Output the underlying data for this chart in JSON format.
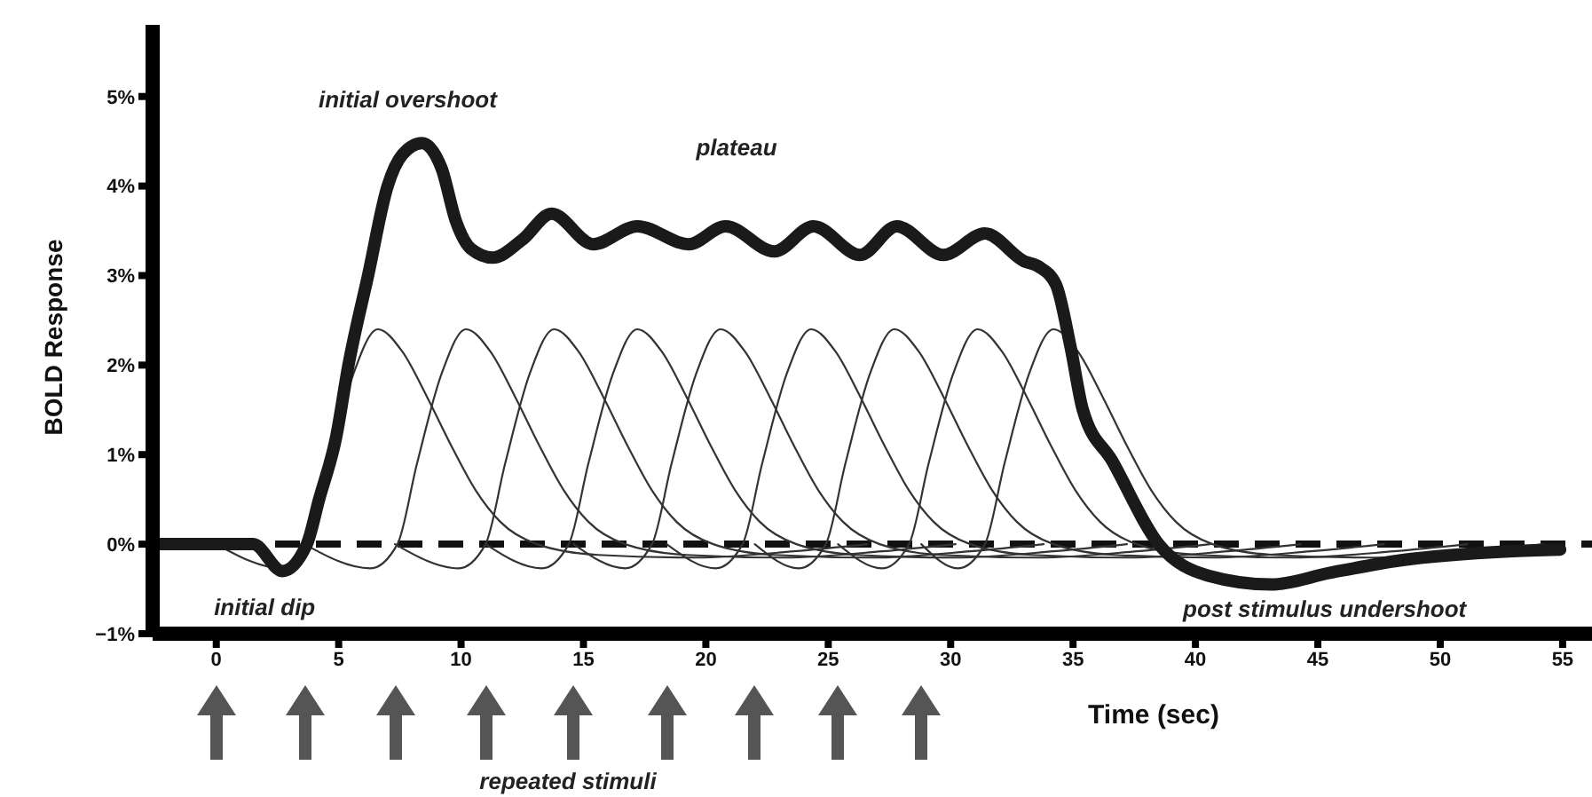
{
  "chart_data": {
    "type": "line",
    "xlabel": "Time (sec)",
    "ylabel": "BOLD Response",
    "xlim": [
      -2.6,
      56.2
    ],
    "xticks": [
      0,
      5,
      10,
      15,
      20,
      25,
      30,
      35,
      40,
      45,
      50,
      55
    ],
    "ylim": [
      -1,
      5.8
    ],
    "yticks": [
      {
        "value": -1,
        "label": "−1%"
      },
      {
        "value": 0,
        "label": "0%"
      },
      {
        "value": 1,
        "label": "1%"
      },
      {
        "value": 2,
        "label": "2%"
      },
      {
        "value": 3,
        "label": "3%"
      },
      {
        "value": 4,
        "label": "4%"
      },
      {
        "value": 5,
        "label": "5%"
      }
    ],
    "grid": false,
    "marker": "none",
    "line_style": "solid",
    "ref_lines": [
      {
        "axis": "y",
        "value": 0,
        "color": "#111111",
        "line_style": "dashed"
      }
    ],
    "annotations": [
      {
        "text": "initial overshoot",
        "x": 8.4,
        "y": 4.48
      },
      "plateau",
      {
        "text": "initial dip",
        "x": 2.7,
        "y": -0.3
      },
      {
        "text": "post stimulus undershoot",
        "x": 43.1,
        "y": -0.45
      },
      "repeated stimuli"
    ],
    "series": [
      {
        "color": "#1a1a1a",
        "x": [
          -2.6,
          1.5,
          2.7,
          3.7,
          4.2,
          4.9,
          5.4,
          6.2,
          7.0,
          7.6,
          8.4,
          9.2,
          9.8,
          10.4,
          11.3,
          12.5,
          13.7,
          15.4,
          17.2,
          19.3,
          20.8,
          22.8,
          24.4,
          26.3,
          27.8,
          29.7,
          31.4,
          33.0,
          33.6,
          34.3,
          34.9,
          35.4,
          36.6,
          38.5,
          40.5,
          43.1,
          45.5,
          48.4,
          52.8,
          54.9
        ],
        "values": [
          0,
          0,
          -0.3,
          0,
          0.5,
          1.2,
          2,
          3,
          4,
          4.35,
          4.48,
          4.2,
          3.6,
          3.3,
          3.2,
          3.4,
          3.69,
          3.35,
          3.55,
          3.35,
          3.55,
          3.27,
          3.55,
          3.23,
          3.55,
          3.23,
          3.47,
          3.16,
          3.1,
          2.9,
          2.2,
          1.5,
          0.93,
          0,
          -0.35,
          -0.45,
          -0.32,
          -0.18,
          -0.08,
          -0.06
        ]
      },
      {
        "color": "#333333",
        "x": [
          0,
          2.7,
          3.8,
          4.6,
          5.6,
          6.6,
          7.6,
          8.6,
          9.6,
          10.6,
          11.6,
          13.1,
          15.6,
          19.6,
          23.6,
          26.6
        ],
        "values": [
          0,
          -0.27,
          0,
          0.9,
          1.9,
          2.4,
          2.15,
          1.65,
          1.1,
          0.6,
          0.25,
          0,
          -0.12,
          -0.15,
          -0.08,
          0
        ]
      },
      {
        "color": "#333333",
        "x": [
          3.6,
          6.3,
          7.4,
          8.2,
          9.2,
          10.2,
          11.2,
          12.2,
          13.2,
          14.2,
          15.2,
          16.7,
          19.2,
          23.2,
          27.2,
          30.2
        ],
        "values": [
          0,
          -0.27,
          0,
          0.9,
          1.9,
          2.4,
          2.15,
          1.65,
          1.1,
          0.6,
          0.25,
          0,
          -0.12,
          -0.15,
          -0.08,
          0
        ]
      },
      {
        "color": "#333333",
        "x": [
          7.3,
          9.9,
          11,
          11.8,
          12.8,
          13.8,
          14.8,
          15.8,
          16.8,
          17.8,
          18.8,
          20.3,
          22.8,
          26.8,
          30.8,
          33.8
        ],
        "values": [
          0,
          -0.27,
          0,
          0.9,
          1.9,
          2.4,
          2.15,
          1.65,
          1.1,
          0.6,
          0.25,
          0,
          -0.12,
          -0.15,
          -0.08,
          0
        ]
      },
      {
        "color": "#333333",
        "x": [
          11,
          13.3,
          14.4,
          15.2,
          16.2,
          17.2,
          18.2,
          19.2,
          20.2,
          21.2,
          22.2,
          23.7,
          26.2,
          30.2,
          34.2,
          37.2
        ],
        "values": [
          0,
          -0.27,
          0,
          0.9,
          1.9,
          2.4,
          2.15,
          1.65,
          1.1,
          0.6,
          0.25,
          0,
          -0.12,
          -0.15,
          -0.08,
          0
        ]
      },
      {
        "color": "#333333",
        "x": [
          14.6,
          16.7,
          17.8,
          18.6,
          19.6,
          20.6,
          21.6,
          22.6,
          23.6,
          24.6,
          25.6,
          27.1,
          29.6,
          33.6,
          37.6,
          40.6
        ],
        "values": [
          0,
          -0.27,
          0,
          0.9,
          1.9,
          2.4,
          2.15,
          1.65,
          1.1,
          0.6,
          0.25,
          0,
          -0.12,
          -0.15,
          -0.08,
          0
        ]
      },
      {
        "color": "#333333",
        "x": [
          18.4,
          20.4,
          21.5,
          22.3,
          23.3,
          24.3,
          25.3,
          26.3,
          27.3,
          28.3,
          29.3,
          30.8,
          33.3,
          37.3,
          41.3,
          44.3
        ],
        "values": [
          0,
          -0.27,
          0,
          0.9,
          1.9,
          2.4,
          2.15,
          1.65,
          1.1,
          0.6,
          0.25,
          0,
          -0.12,
          -0.15,
          -0.08,
          0
        ]
      },
      {
        "color": "#333333",
        "x": [
          22,
          23.8,
          24.9,
          25.7,
          26.7,
          27.7,
          28.7,
          29.7,
          30.7,
          31.7,
          32.7,
          34.2,
          36.7,
          40.7,
          44.7,
          47.7
        ],
        "values": [
          0,
          -0.27,
          0,
          0.9,
          1.9,
          2.4,
          2.15,
          1.65,
          1.1,
          0.6,
          0.25,
          0,
          -0.12,
          -0.15,
          -0.08,
          0
        ]
      },
      {
        "color": "#333333",
        "x": [
          25.4,
          27.2,
          28.3,
          29.1,
          30.1,
          31.1,
          32.1,
          33.1,
          34.1,
          35.1,
          36.1,
          37.6,
          40.1,
          44.1,
          48.1,
          51.1
        ],
        "values": [
          0,
          -0.27,
          0,
          0.9,
          1.9,
          2.4,
          2.15,
          1.65,
          1.1,
          0.6,
          0.25,
          0,
          -0.12,
          -0.15,
          -0.08,
          0
        ]
      },
      {
        "color": "#333333",
        "x": [
          28.8,
          30.3,
          31.4,
          32.2,
          33.2,
          34.2,
          35.2,
          36.2,
          37.2,
          38.2,
          39.2,
          40.7,
          43.2,
          47.2,
          51.2,
          54.2
        ],
        "values": [
          0,
          -0.27,
          0,
          0.9,
          1.9,
          2.4,
          2.15,
          1.65,
          1.1,
          0.6,
          0.25,
          0,
          -0.12,
          -0.15,
          -0.08,
          0
        ]
      }
    ]
  }
}
